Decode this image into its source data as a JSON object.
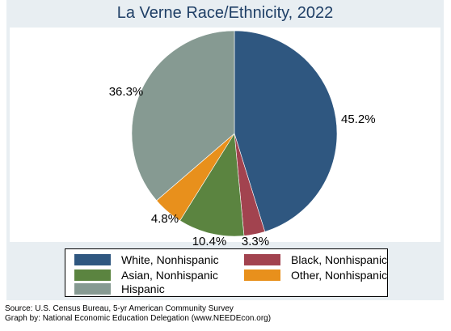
{
  "title": "La Verne Race/Ethnicity, 2022",
  "chart_data": {
    "type": "pie",
    "title": "La Verne Race/Ethnicity, 2022",
    "slices": [
      {
        "label": "White, Nonhispanic",
        "value": 45.2,
        "value_label": "45.2%",
        "color": "#2f5780"
      },
      {
        "label": "Black, Nonhispanic",
        "value": 3.3,
        "value_label": "3.3%",
        "color": "#a2434f"
      },
      {
        "label": "Asian, Nonhispanic",
        "value": 10.4,
        "value_label": "10.4%",
        "color": "#5b8440"
      },
      {
        "label": "Other, Nonhispanic",
        "value": 4.8,
        "value_label": "4.8%",
        "color": "#e8901c"
      },
      {
        "label": "Hispanic",
        "value": 36.3,
        "value_label": "36.3%",
        "color": "#869a92"
      }
    ],
    "start": "12 o'clock",
    "direction": "clockwise",
    "legend_position": "bottom"
  },
  "source": {
    "line1": "Source:  U.S. Census Bureau, 5-yr American Community Survey",
    "line2": "Graph by: National Economic Education Delegation (www.NEEDEcon.org)"
  }
}
